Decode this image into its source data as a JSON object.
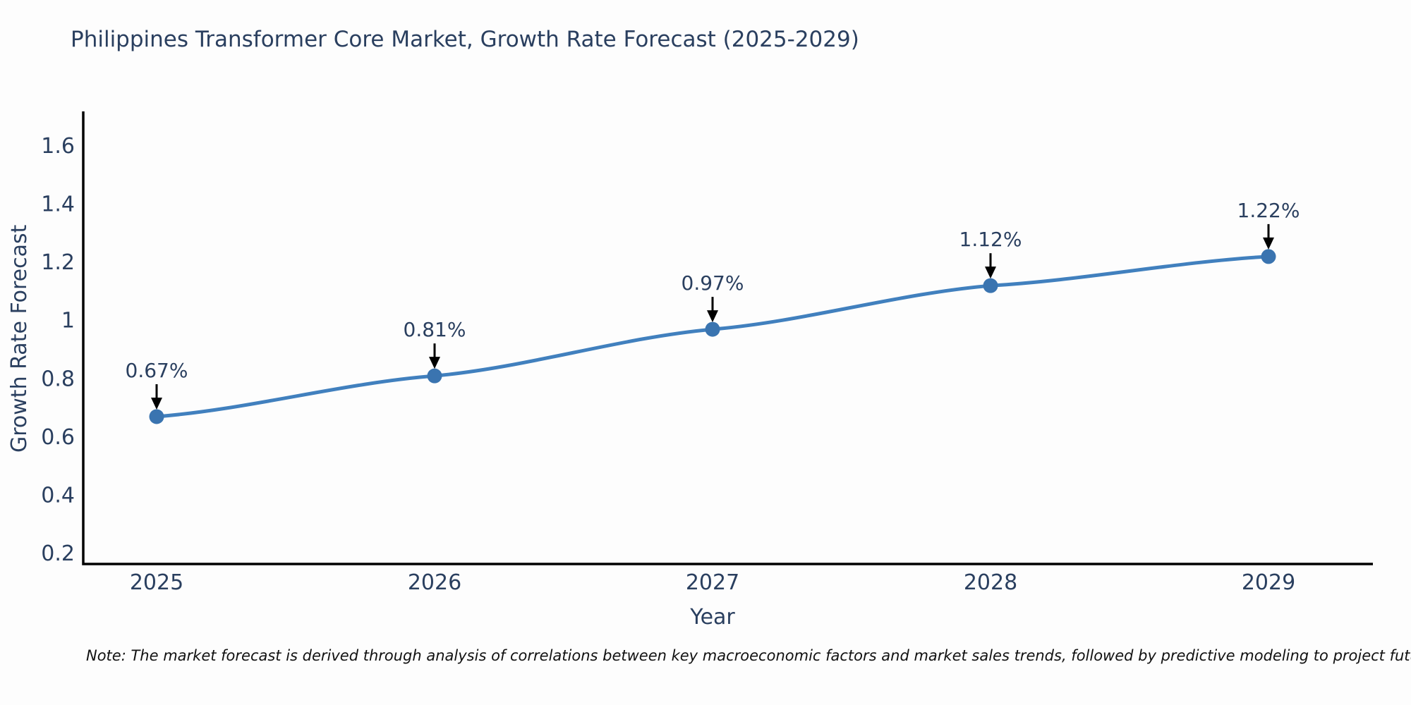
{
  "page": {
    "background_color": "#fdfdfd"
  },
  "chart_data": {
    "type": "line",
    "title": "Philippines Transformer Core Market, Growth Rate Forecast (2025-2029)",
    "xlabel": "Year",
    "ylabel": "Growth Rate Forecast",
    "categories": [
      2025,
      2026,
      2027,
      2028,
      2029
    ],
    "values": [
      0.67,
      0.81,
      0.97,
      1.12,
      1.22
    ],
    "point_labels": [
      "0.67%",
      "0.81%",
      "0.97%",
      "1.12%",
      "1.22%"
    ],
    "xlim": [
      2025,
      2029
    ],
    "ylim": [
      0.2,
      1.6
    ],
    "yticks": {
      "values": [
        0.2,
        0.4,
        0.6,
        0.8,
        1,
        1.2,
        1.4,
        1.6
      ],
      "labels": [
        "0.2",
        "0.4",
        "0.6",
        "0.8",
        "1",
        "1.2",
        "1.4",
        "1.6"
      ]
    },
    "xticks": {
      "values": [
        2025,
        2026,
        2027,
        2028,
        2029
      ],
      "labels": [
        "2025",
        "2026",
        "2027",
        "2028",
        "2029"
      ]
    },
    "grid": false,
    "legend": false,
    "annotation_arrows": true,
    "colors": {
      "line": "#4180be",
      "marker": "#3a74b0",
      "axis": "#000000",
      "tick_text": "#2a3f5f",
      "annotation_text": "#2a3f5f",
      "arrow": "#000000",
      "title_text": "#2a3f5f",
      "note_text": "#111111"
    }
  },
  "note": "Note: The market forecast is derived through analysis of correlations between key macroeconomic factors and market sales trends, followed by predictive modeling to project future sales"
}
